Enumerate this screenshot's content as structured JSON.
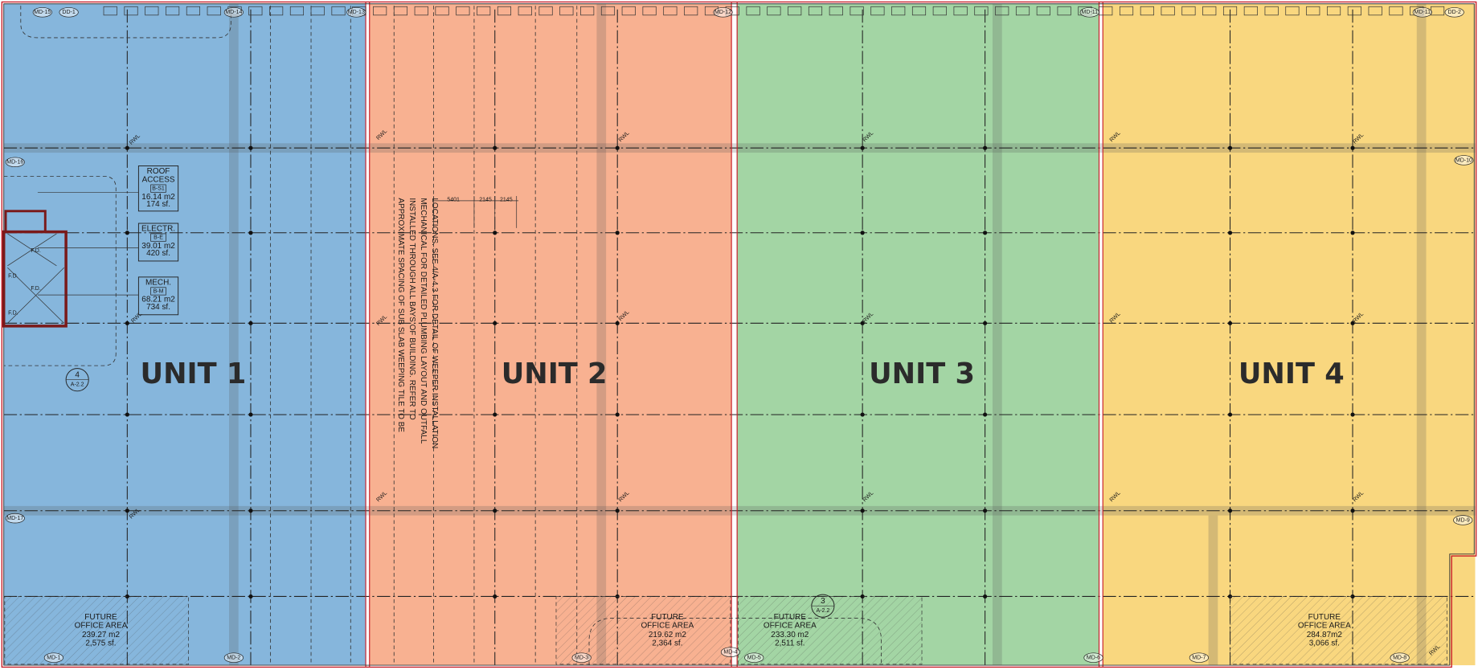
{
  "units": [
    {
      "label": "UNIT 1",
      "color": "#86b6dc"
    },
    {
      "label": "UNIT 2",
      "color": "#f8b191"
    },
    {
      "label": "UNIT 3",
      "color": "#a3d5a4"
    },
    {
      "label": "UNIT 4",
      "color": "#f9d77f"
    }
  ],
  "rooms": [
    {
      "name": [
        "ROOF",
        "ACCESS"
      ],
      "tag": "B-S1",
      "area_m2": "16.14 m2",
      "area_sf": "174 sf."
    },
    {
      "name": [
        "ELECTR."
      ],
      "tag": "B-E",
      "area_m2": "39.01 m2",
      "area_sf": "420 sf."
    },
    {
      "name": [
        "MECH."
      ],
      "tag": "B-M",
      "area_m2": "68.21 m2",
      "area_sf": "734 sf."
    }
  ],
  "offices": [
    {
      "lines": [
        "FUTURE",
        "OFFICE AREA"
      ],
      "area_m2": "239.27 m2",
      "area_sf": "2,575 sf."
    },
    {
      "lines": [
        "FUTURE",
        "OFFICE AREA"
      ],
      "area_m2": "219.62 m2",
      "area_sf": "2,364 sf."
    },
    {
      "lines": [
        "FUTURE",
        "OFFICE AREA"
      ],
      "area_m2": "233.30 m2",
      "area_sf": "2,511 sf."
    },
    {
      "lines": [
        "FUTURE",
        "OFFICE AREA"
      ],
      "area_m2": "284.87m2",
      "area_sf": "3,066 sf."
    }
  ],
  "note": {
    "lines": [
      "APPROXIMATE SPACING OF SUB SLAB WEEPING TILE TO BE",
      "INSTALLED THROUGH ALL BAYS OF BUILDING. REFER TO",
      "MECHANICAL FOR DETAILED PLUMBING LAYOUT AND OUTFALL",
      "LOCATIONS. SEE 4/A-4.3 FOR DETAIL OF WEEPER INSTALLATION"
    ]
  },
  "dimensions": [
    "5401",
    "2145",
    "2145"
  ],
  "callouts": [
    {
      "number": "4",
      "sheet": "A-2.2"
    },
    {
      "number": "3",
      "sheet": "A-2.2"
    }
  ],
  "grid_tags": [
    "MD-15",
    "DD-1",
    "MD-14",
    "MD-13",
    "MD-12",
    "MD-11",
    "MD-11",
    "DD-2",
    "MD-16",
    "MD-17",
    "MD-10",
    "MD-9",
    "MD-1",
    "MD-2",
    "MD-3",
    "MD-4",
    "MD-5",
    "MD-6",
    "MD-7",
    "MD-8"
  ],
  "floor_drain": "F.D.",
  "rwl": "RWL"
}
